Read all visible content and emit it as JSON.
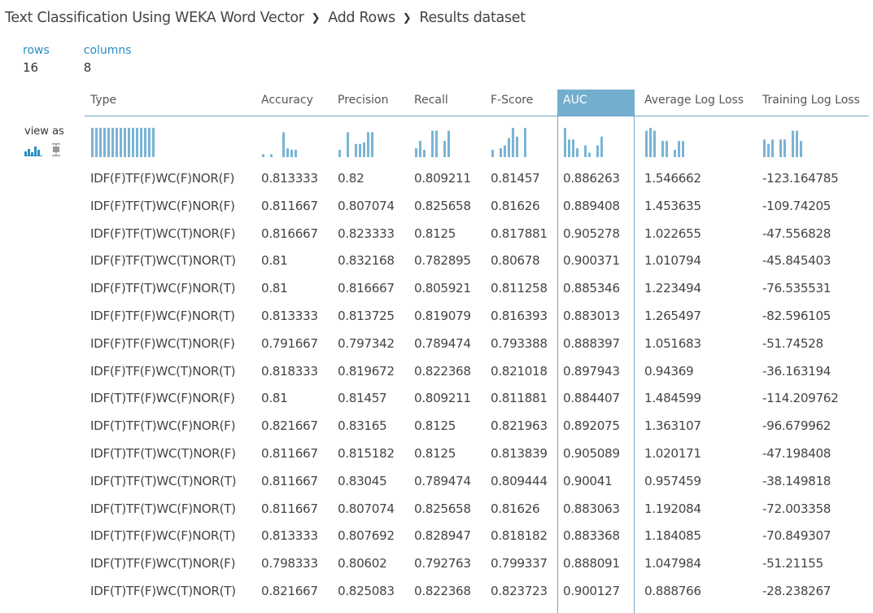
{
  "breadcrumb": [
    "Text Classification Using WEKA Word Vector",
    "Add Rows",
    "Results dataset"
  ],
  "stats": {
    "rows_label": "rows",
    "rows_value": "16",
    "columns_label": "columns",
    "columns_value": "8"
  },
  "view_as_label": "view as",
  "colors": {
    "accent": "#2b8ec3",
    "selected_header": "#74aece",
    "bar": "#79b4d6"
  },
  "columns": [
    "Type",
    "Accuracy",
    "Precision",
    "Recall",
    "F-Score",
    "AUC",
    "Average Log Loss",
    "Training Log Loss"
  ],
  "selected_column": "AUC",
  "rows": [
    [
      "IDF(F)TF(F)WC(F)NOR(F)",
      "0.813333",
      "0.82",
      "0.809211",
      "0.81457",
      "0.886263",
      "1.546662",
      "-123.164785"
    ],
    [
      "IDF(F)TF(T)WC(F)NOR(F)",
      "0.811667",
      "0.807074",
      "0.825658",
      "0.81626",
      "0.889408",
      "1.453635",
      "-109.74205"
    ],
    [
      "IDF(F)TF(T)WC(T)NOR(F)",
      "0.816667",
      "0.823333",
      "0.8125",
      "0.817881",
      "0.905278",
      "1.022655",
      "-47.556828"
    ],
    [
      "IDF(F)TF(T)WC(T)NOR(T)",
      "0.81",
      "0.832168",
      "0.782895",
      "0.80678",
      "0.900371",
      "1.010794",
      "-45.845403"
    ],
    [
      "IDF(F)TF(T)WC(F)NOR(T)",
      "0.81",
      "0.816667",
      "0.805921",
      "0.811258",
      "0.885346",
      "1.223494",
      "-76.535531"
    ],
    [
      "IDF(F)TF(F)WC(F)NOR(T)",
      "0.813333",
      "0.813725",
      "0.819079",
      "0.816393",
      "0.883013",
      "1.265497",
      "-82.596105"
    ],
    [
      "IDF(F)TF(F)WC(T)NOR(F)",
      "0.791667",
      "0.797342",
      "0.789474",
      "0.793388",
      "0.888397",
      "1.051683",
      "-51.74528"
    ],
    [
      "IDF(F)TF(F)WC(T)NOR(T)",
      "0.818333",
      "0.819672",
      "0.822368",
      "0.821018",
      "0.897943",
      "0.94369",
      "-36.163194"
    ],
    [
      "IDF(T)TF(F)WC(F)NOR(F)",
      "0.81",
      "0.81457",
      "0.809211",
      "0.811881",
      "0.884407",
      "1.484599",
      "-114.209762"
    ],
    [
      "IDF(T)TF(T)WC(F)NOR(F)",
      "0.821667",
      "0.83165",
      "0.8125",
      "0.821963",
      "0.892075",
      "1.363107",
      "-96.679962"
    ],
    [
      "IDF(T)TF(T)WC(T)NOR(F)",
      "0.811667",
      "0.815182",
      "0.8125",
      "0.813839",
      "0.905089",
      "1.020171",
      "-47.198408"
    ],
    [
      "IDF(T)TF(T)WC(T)NOR(T)",
      "0.811667",
      "0.83045",
      "0.789474",
      "0.809444",
      "0.90041",
      "0.957459",
      "-38.149818"
    ],
    [
      "IDF(T)TF(T)WC(F)NOR(T)",
      "0.811667",
      "0.807074",
      "0.825658",
      "0.81626",
      "0.883063",
      "1.192084",
      "-72.003358"
    ],
    [
      "IDF(T)TF(F)WC(F)NOR(T)",
      "0.813333",
      "0.807692",
      "0.828947",
      "0.818182",
      "0.883368",
      "1.184085",
      "-70.849307"
    ],
    [
      "IDF(T)TF(F)WC(T)NOR(F)",
      "0.798333",
      "0.80602",
      "0.792763",
      "0.799337",
      "0.888091",
      "1.047984",
      "-51.21155"
    ],
    [
      "IDF(T)TF(F)WC(T)NOR(T)",
      "0.821667",
      "0.825083",
      "0.822368",
      "0.823723",
      "0.900127",
      "0.888766",
      "-28.238267"
    ]
  ],
  "histograms": [
    [
      1,
      1,
      1,
      1,
      1,
      1,
      1,
      1,
      1,
      1,
      1,
      1,
      1,
      1,
      1,
      1
    ],
    [
      0.1,
      0,
      0.1,
      0,
      0,
      0.85,
      0.3,
      0.25,
      0.25
    ],
    [
      0.25,
      0,
      0.85,
      0,
      0.45,
      0.45,
      0.5,
      0.85,
      0.85
    ],
    [
      0.3,
      0.55,
      0.25,
      0,
      0.9,
      0.9,
      0,
      0.55,
      0.9
    ],
    [
      0.25,
      0,
      0.3,
      0.4,
      0.65,
      1,
      0.7,
      0,
      1
    ],
    [
      1,
      0.6,
      0.6,
      0.3,
      0,
      0.4,
      0.15,
      0,
      0.4,
      0.7
    ],
    [
      0.9,
      1,
      0.9,
      0,
      0.55,
      0.55,
      0,
      0.25,
      0.55,
      0.55
    ],
    [
      0.6,
      0.45,
      0.6,
      0,
      0.6,
      0.6,
      0,
      0.9,
      0.9,
      0.55
    ]
  ]
}
